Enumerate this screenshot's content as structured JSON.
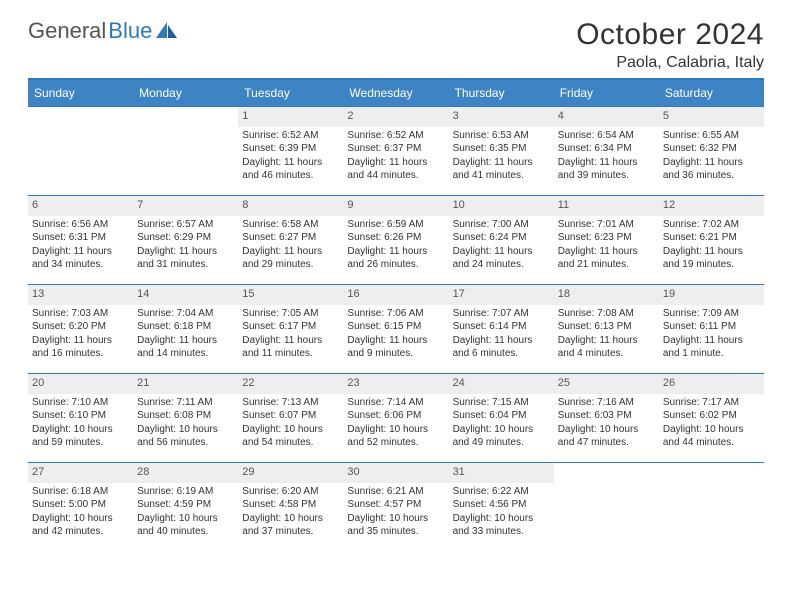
{
  "logo": {
    "word1": "General",
    "word2": "Blue"
  },
  "title": {
    "month": "October 2024",
    "location": "Paola, Calabria, Italy"
  },
  "colors": {
    "header_bg": "#3e84c5",
    "header_text": "#ffffff",
    "rule": "#2f79bd",
    "daynum_bg": "#eeeeee",
    "body_text": "#333333",
    "logo_gray": "#555555",
    "logo_blue": "#2f79bd"
  },
  "typography": {
    "title_fontsize": 30,
    "location_fontsize": 16,
    "header_fontsize": 12,
    "daynum_fontsize": 11,
    "cell_fontsize": 10
  },
  "table": {
    "type": "calendar-table",
    "columns": [
      "Sunday",
      "Monday",
      "Tuesday",
      "Wednesday",
      "Thursday",
      "Friday",
      "Saturday"
    ],
    "weeks": [
      [
        null,
        null,
        {
          "n": "1",
          "sr": "Sunrise: 6:52 AM",
          "ss": "Sunset: 6:39 PM",
          "d1": "Daylight: 11 hours",
          "d2": "and 46 minutes."
        },
        {
          "n": "2",
          "sr": "Sunrise: 6:52 AM",
          "ss": "Sunset: 6:37 PM",
          "d1": "Daylight: 11 hours",
          "d2": "and 44 minutes."
        },
        {
          "n": "3",
          "sr": "Sunrise: 6:53 AM",
          "ss": "Sunset: 6:35 PM",
          "d1": "Daylight: 11 hours",
          "d2": "and 41 minutes."
        },
        {
          "n": "4",
          "sr": "Sunrise: 6:54 AM",
          "ss": "Sunset: 6:34 PM",
          "d1": "Daylight: 11 hours",
          "d2": "and 39 minutes."
        },
        {
          "n": "5",
          "sr": "Sunrise: 6:55 AM",
          "ss": "Sunset: 6:32 PM",
          "d1": "Daylight: 11 hours",
          "d2": "and 36 minutes."
        }
      ],
      [
        {
          "n": "6",
          "sr": "Sunrise: 6:56 AM",
          "ss": "Sunset: 6:31 PM",
          "d1": "Daylight: 11 hours",
          "d2": "and 34 minutes."
        },
        {
          "n": "7",
          "sr": "Sunrise: 6:57 AM",
          "ss": "Sunset: 6:29 PM",
          "d1": "Daylight: 11 hours",
          "d2": "and 31 minutes."
        },
        {
          "n": "8",
          "sr": "Sunrise: 6:58 AM",
          "ss": "Sunset: 6:27 PM",
          "d1": "Daylight: 11 hours",
          "d2": "and 29 minutes."
        },
        {
          "n": "9",
          "sr": "Sunrise: 6:59 AM",
          "ss": "Sunset: 6:26 PM",
          "d1": "Daylight: 11 hours",
          "d2": "and 26 minutes."
        },
        {
          "n": "10",
          "sr": "Sunrise: 7:00 AM",
          "ss": "Sunset: 6:24 PM",
          "d1": "Daylight: 11 hours",
          "d2": "and 24 minutes."
        },
        {
          "n": "11",
          "sr": "Sunrise: 7:01 AM",
          "ss": "Sunset: 6:23 PM",
          "d1": "Daylight: 11 hours",
          "d2": "and 21 minutes."
        },
        {
          "n": "12",
          "sr": "Sunrise: 7:02 AM",
          "ss": "Sunset: 6:21 PM",
          "d1": "Daylight: 11 hours",
          "d2": "and 19 minutes."
        }
      ],
      [
        {
          "n": "13",
          "sr": "Sunrise: 7:03 AM",
          "ss": "Sunset: 6:20 PM",
          "d1": "Daylight: 11 hours",
          "d2": "and 16 minutes."
        },
        {
          "n": "14",
          "sr": "Sunrise: 7:04 AM",
          "ss": "Sunset: 6:18 PM",
          "d1": "Daylight: 11 hours",
          "d2": "and 14 minutes."
        },
        {
          "n": "15",
          "sr": "Sunrise: 7:05 AM",
          "ss": "Sunset: 6:17 PM",
          "d1": "Daylight: 11 hours",
          "d2": "and 11 minutes."
        },
        {
          "n": "16",
          "sr": "Sunrise: 7:06 AM",
          "ss": "Sunset: 6:15 PM",
          "d1": "Daylight: 11 hours",
          "d2": "and 9 minutes."
        },
        {
          "n": "17",
          "sr": "Sunrise: 7:07 AM",
          "ss": "Sunset: 6:14 PM",
          "d1": "Daylight: 11 hours",
          "d2": "and 6 minutes."
        },
        {
          "n": "18",
          "sr": "Sunrise: 7:08 AM",
          "ss": "Sunset: 6:13 PM",
          "d1": "Daylight: 11 hours",
          "d2": "and 4 minutes."
        },
        {
          "n": "19",
          "sr": "Sunrise: 7:09 AM",
          "ss": "Sunset: 6:11 PM",
          "d1": "Daylight: 11 hours",
          "d2": "and 1 minute."
        }
      ],
      [
        {
          "n": "20",
          "sr": "Sunrise: 7:10 AM",
          "ss": "Sunset: 6:10 PM",
          "d1": "Daylight: 10 hours",
          "d2": "and 59 minutes."
        },
        {
          "n": "21",
          "sr": "Sunrise: 7:11 AM",
          "ss": "Sunset: 6:08 PM",
          "d1": "Daylight: 10 hours",
          "d2": "and 56 minutes."
        },
        {
          "n": "22",
          "sr": "Sunrise: 7:13 AM",
          "ss": "Sunset: 6:07 PM",
          "d1": "Daylight: 10 hours",
          "d2": "and 54 minutes."
        },
        {
          "n": "23",
          "sr": "Sunrise: 7:14 AM",
          "ss": "Sunset: 6:06 PM",
          "d1": "Daylight: 10 hours",
          "d2": "and 52 minutes."
        },
        {
          "n": "24",
          "sr": "Sunrise: 7:15 AM",
          "ss": "Sunset: 6:04 PM",
          "d1": "Daylight: 10 hours",
          "d2": "and 49 minutes."
        },
        {
          "n": "25",
          "sr": "Sunrise: 7:16 AM",
          "ss": "Sunset: 6:03 PM",
          "d1": "Daylight: 10 hours",
          "d2": "and 47 minutes."
        },
        {
          "n": "26",
          "sr": "Sunrise: 7:17 AM",
          "ss": "Sunset: 6:02 PM",
          "d1": "Daylight: 10 hours",
          "d2": "and 44 minutes."
        }
      ],
      [
        {
          "n": "27",
          "sr": "Sunrise: 6:18 AM",
          "ss": "Sunset: 5:00 PM",
          "d1": "Daylight: 10 hours",
          "d2": "and 42 minutes."
        },
        {
          "n": "28",
          "sr": "Sunrise: 6:19 AM",
          "ss": "Sunset: 4:59 PM",
          "d1": "Daylight: 10 hours",
          "d2": "and 40 minutes."
        },
        {
          "n": "29",
          "sr": "Sunrise: 6:20 AM",
          "ss": "Sunset: 4:58 PM",
          "d1": "Daylight: 10 hours",
          "d2": "and 37 minutes."
        },
        {
          "n": "30",
          "sr": "Sunrise: 6:21 AM",
          "ss": "Sunset: 4:57 PM",
          "d1": "Daylight: 10 hours",
          "d2": "and 35 minutes."
        },
        {
          "n": "31",
          "sr": "Sunrise: 6:22 AM",
          "ss": "Sunset: 4:56 PM",
          "d1": "Daylight: 10 hours",
          "d2": "and 33 minutes."
        },
        null,
        null
      ]
    ]
  }
}
